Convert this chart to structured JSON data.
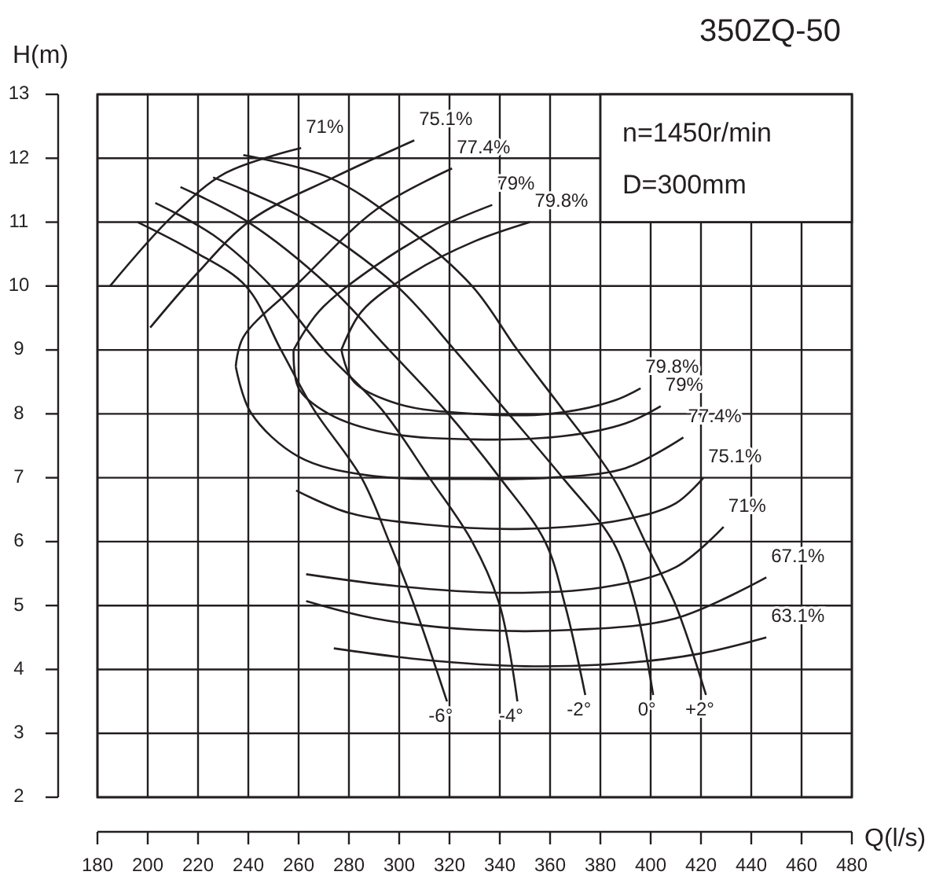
{
  "chart_data": {
    "type": "line",
    "title": "350ZQ-50",
    "xlabel": "Q(l/s)",
    "ylabel": "H(m)",
    "xlim": [
      180,
      480
    ],
    "ylim": [
      2,
      13
    ],
    "xticks": [
      180,
      200,
      220,
      240,
      260,
      280,
      300,
      320,
      340,
      360,
      380,
      400,
      420,
      440,
      460,
      480
    ],
    "yticks": [
      2,
      3,
      4,
      5,
      6,
      7,
      8,
      9,
      10,
      11,
      12,
      13
    ],
    "grid": true,
    "series": [
      {
        "name": "-6°",
        "color": "#231f20",
        "x": [
          196,
          218,
          239,
          253,
          266,
          285,
          296,
          306,
          319
        ],
        "values": [
          11.0,
          10.55,
          10.0,
          9.0,
          8.07,
          7.0,
          6.0,
          5.0,
          3.5
        ]
      },
      {
        "name": "-4°",
        "color": "#231f20",
        "x": [
          203,
          226,
          249,
          270,
          293,
          312,
          329,
          340,
          347
        ],
        "values": [
          11.3,
          10.8,
          10.0,
          9.0,
          8.07,
          7.0,
          6.0,
          5.0,
          3.5
        ]
      },
      {
        "name": "-2°",
        "color": "#231f20",
        "x": [
          213,
          240,
          272,
          296,
          318,
          340,
          358,
          366,
          374
        ],
        "values": [
          11.55,
          11.0,
          10.0,
          9.0,
          8.07,
          7.0,
          6.0,
          5.0,
          3.6
        ]
      },
      {
        "name": "0°",
        "color": "#231f20",
        "x": [
          226,
          260,
          299,
          322,
          342,
          365,
          385,
          394,
          401
        ],
        "values": [
          11.7,
          11.1,
          10.0,
          9.0,
          8.07,
          7.0,
          6.0,
          5.0,
          3.6
        ]
      },
      {
        "name": "+2°",
        "color": "#231f20",
        "x": [
          238,
          272,
          300,
          329,
          347,
          365,
          385,
          399,
          410,
          422
        ],
        "values": [
          12.05,
          11.7,
          11.0,
          10.0,
          9.0,
          8.07,
          7.0,
          5.9,
          5.0,
          3.6
        ]
      },
      {
        "name": "71%",
        "color": "#231f20",
        "x": [
          185,
          210,
          231,
          261
        ],
        "values": [
          10.0,
          11.1,
          11.77,
          12.16
        ]
      },
      {
        "name": "75.1%",
        "color": "#231f20",
        "x": [
          201,
          219,
          241,
          274,
          306
        ],
        "values": [
          9.35,
          10.17,
          11.03,
          11.7,
          12.28
        ]
      },
      {
        "name": "77.4%",
        "color": "#231f20",
        "x": [
          235,
          238,
          260,
          291,
          321
        ],
        "values": [
          8.74,
          9.2,
          10.05,
          11.2,
          11.84
        ]
      },
      {
        "name": "77.4%",
        "color": "#231f20",
        "x": [
          235,
          241,
          260,
          287,
          330,
          360,
          390,
          413
        ],
        "values": [
          8.74,
          8.02,
          7.33,
          7.04,
          6.98,
          7.0,
          7.15,
          7.63
        ]
      },
      {
        "name": "79%",
        "color": "#231f20",
        "x": [
          258,
          268,
          290,
          315,
          337
        ],
        "values": [
          9.0,
          9.6,
          10.3,
          10.9,
          11.27
        ]
      },
      {
        "name": "79%",
        "color": "#231f20",
        "x": [
          258,
          260,
          272,
          295,
          330,
          365,
          390,
          404
        ],
        "values": [
          9.0,
          8.4,
          8.0,
          7.7,
          7.6,
          7.65,
          7.85,
          8.12
        ]
      },
      {
        "name": "79.8%",
        "color": "#231f20",
        "x": [
          277,
          285,
          305,
          330,
          352
        ],
        "values": [
          9.0,
          9.6,
          10.2,
          10.7,
          11.0
        ]
      },
      {
        "name": "79.8%",
        "color": "#231f20",
        "x": [
          277,
          282,
          300,
          330,
          360,
          385,
          396
        ],
        "values": [
          9.0,
          8.5,
          8.15,
          8.0,
          8.0,
          8.2,
          8.4
        ]
      },
      {
        "name": "75.1%",
        "color": "#231f20",
        "x": [
          259,
          280,
          310,
          350,
          390,
          410,
          421
        ],
        "values": [
          6.8,
          6.45,
          6.27,
          6.2,
          6.35,
          6.6,
          7.0
        ]
      },
      {
        "name": "71%",
        "color": "#231f20",
        "x": [
          263,
          300,
          340,
          380,
          410,
          429
        ],
        "values": [
          5.49,
          5.3,
          5.2,
          5.28,
          5.6,
          6.23
        ]
      },
      {
        "name": "67.1%",
        "color": "#231f20",
        "x": [
          263,
          290,
          330,
          370,
          410,
          446
        ],
        "values": [
          5.07,
          4.8,
          4.62,
          4.62,
          4.8,
          5.44
        ]
      },
      {
        "name": "63.1%",
        "color": "#231f20",
        "x": [
          274,
          310,
          350,
          390,
          420,
          446
        ],
        "values": [
          4.33,
          4.15,
          4.05,
          4.1,
          4.25,
          4.5
        ]
      }
    ],
    "annotations": [
      "n=1450r/min",
      "D=300mm"
    ]
  }
}
